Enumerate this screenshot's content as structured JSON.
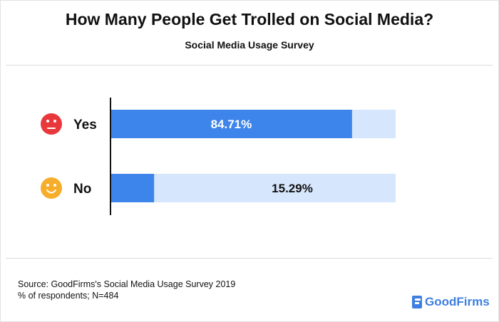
{
  "colors": {
    "bar_fill": "#3d85eb",
    "bar_track": "#d6e6fc",
    "axis": "#111111",
    "sad_face": "#e8383c",
    "happy_face": "#f6ae2a",
    "brand": "#3d7fe0"
  },
  "chart_data": {
    "type": "bar",
    "orientation": "horizontal",
    "title": "How Many People Get Trolled on Social Media?",
    "subtitle": "Social Media Usage Survey",
    "categories": [
      "Yes",
      "No"
    ],
    "values": [
      84.71,
      15.29
    ],
    "value_labels": [
      "84.71%",
      "15.29%"
    ],
    "category_icons": [
      "sad-face-icon",
      "happy-face-icon"
    ],
    "xlim": [
      0,
      100
    ],
    "grid": false,
    "legend": "none"
  },
  "footer": {
    "source_line1": "Source: GoodFirms's Social Media Usage Survey 2019",
    "source_line2": "% of respondents; N=484",
    "brand": "GoodFirms",
    "brand_icon": "goodfirms-logo-icon"
  }
}
